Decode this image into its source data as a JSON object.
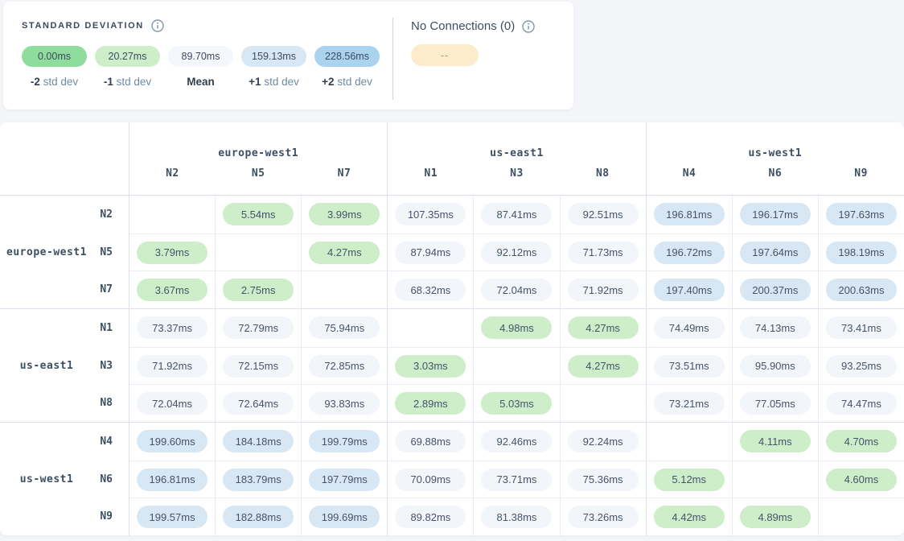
{
  "legend": {
    "title": "STANDARD DEVIATION",
    "steps": [
      {
        "value": "0.00ms",
        "label_strong": "-2",
        "label_rest": " std dev",
        "color": "#8edd9d"
      },
      {
        "value": "20.27ms",
        "label_strong": "-1",
        "label_rest": " std dev",
        "color": "#cdeec8"
      },
      {
        "value": "89.70ms",
        "label_strong": "Mean",
        "label_rest": "",
        "color": "#f4f7fb"
      },
      {
        "value": "159.13ms",
        "label_strong": "+1",
        "label_rest": " std dev",
        "color": "#d7e7f3"
      },
      {
        "value": "228.56ms",
        "label_strong": "+2",
        "label_rest": " std dev",
        "color": "#a9d3ef"
      }
    ],
    "no_connections": {
      "label": "No Connections (0)",
      "pill_text": "--",
      "pill_color": "#fdeccc"
    }
  },
  "color_scale": {
    "green_max": 20.27,
    "blue_min": 159.13,
    "green": "#cdeec8",
    "neutral": "#f2f5f9",
    "blue": "#d8e7f4"
  },
  "matrix": {
    "col_groups": [
      {
        "region": "europe-west1",
        "nodes": [
          "N2",
          "N5",
          "N7"
        ]
      },
      {
        "region": "us-east1",
        "nodes": [
          "N1",
          "N3",
          "N8"
        ]
      },
      {
        "region": "us-west1",
        "nodes": [
          "N4",
          "N6",
          "N9"
        ]
      }
    ],
    "row_groups": [
      {
        "region": "europe-west1",
        "rows": [
          {
            "node": "N2",
            "values": [
              null,
              "5.54ms",
              "3.99ms",
              "107.35ms",
              "87.41ms",
              "92.51ms",
              "196.81ms",
              "196.17ms",
              "197.63ms"
            ]
          },
          {
            "node": "N5",
            "values": [
              "3.79ms",
              null,
              "4.27ms",
              "87.94ms",
              "92.12ms",
              "71.73ms",
              "196.72ms",
              "197.64ms",
              "198.19ms"
            ]
          },
          {
            "node": "N7",
            "values": [
              "3.67ms",
              "2.75ms",
              null,
              "68.32ms",
              "72.04ms",
              "71.92ms",
              "197.40ms",
              "200.37ms",
              "200.63ms"
            ]
          }
        ]
      },
      {
        "region": "us-east1",
        "rows": [
          {
            "node": "N1",
            "values": [
              "73.37ms",
              "72.79ms",
              "75.94ms",
              null,
              "4.98ms",
              "4.27ms",
              "74.49ms",
              "74.13ms",
              "73.41ms"
            ]
          },
          {
            "node": "N3",
            "values": [
              "71.92ms",
              "72.15ms",
              "72.85ms",
              "3.03ms",
              null,
              "4.27ms",
              "73.51ms",
              "95.90ms",
              "93.25ms"
            ]
          },
          {
            "node": "N8",
            "values": [
              "72.04ms",
              "72.64ms",
              "93.83ms",
              "2.89ms",
              "5.03ms",
              null,
              "73.21ms",
              "77.05ms",
              "74.47ms"
            ]
          }
        ]
      },
      {
        "region": "us-west1",
        "rows": [
          {
            "node": "N4",
            "values": [
              "199.60ms",
              "184.18ms",
              "199.79ms",
              "69.88ms",
              "92.46ms",
              "92.24ms",
              null,
              "4.11ms",
              "4.70ms"
            ]
          },
          {
            "node": "N6",
            "values": [
              "196.81ms",
              "183.79ms",
              "197.79ms",
              "70.09ms",
              "73.71ms",
              "75.36ms",
              "5.12ms",
              null,
              "4.60ms"
            ]
          },
          {
            "node": "N9",
            "values": [
              "199.57ms",
              "182.88ms",
              "199.69ms",
              "89.82ms",
              "81.38ms",
              "73.26ms",
              "4.42ms",
              "4.89ms",
              null
            ]
          }
        ]
      }
    ]
  }
}
